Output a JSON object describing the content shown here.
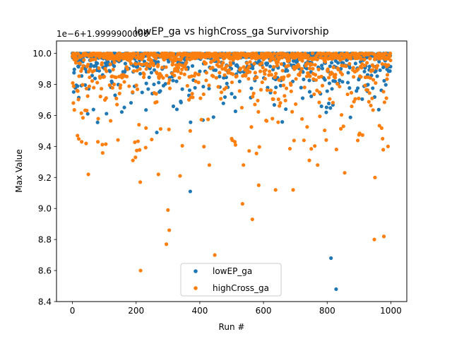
{
  "chart_data": {
    "type": "scatter",
    "title": "lowEP_ga vs highCross_ga Survivorship",
    "xlabel": "Run #",
    "ylabel": "Max Value",
    "offset_text": "1e−6+1.9999900000",
    "xlim": [
      -50,
      1050
    ],
    "ylim": [
      8.4,
      10.08
    ],
    "xticks": [
      0,
      200,
      400,
      600,
      800,
      1000
    ],
    "xtick_labels": [
      "0",
      "200",
      "400",
      "600",
      "800",
      "1000"
    ],
    "yticks": [
      8.4,
      8.6,
      8.8,
      9.0,
      9.2,
      9.4,
      9.6,
      9.8,
      10.0
    ],
    "ytick_labels": [
      "8.4",
      "8.6",
      "8.8",
      "9.0",
      "9.2",
      "9.4",
      "9.6",
      "9.8",
      "10.0"
    ],
    "grid": false,
    "legend_position": "lower-center",
    "n_points_per_series": 1000,
    "series": [
      {
        "name": "lowEP_ga",
        "color": "#1f77b4",
        "notable_points": [
          [
            370,
            9.11
          ],
          [
            812,
            8.68
          ],
          [
            828,
            8.48
          ],
          [
            265,
            9.49
          ],
          [
            123,
            9.82
          ]
        ]
      },
      {
        "name": "highCross_ga",
        "color": "#ff7f0e",
        "notable_points": [
          [
            214,
            8.6
          ],
          [
            295,
            8.77
          ],
          [
            300,
            8.99
          ],
          [
            304,
            8.86
          ],
          [
            447,
            8.7
          ],
          [
            565,
            8.93
          ],
          [
            534,
            9.03
          ],
          [
            270,
            9.22
          ],
          [
            213,
            9.17
          ],
          [
            50,
            9.22
          ],
          [
            198,
            9.33
          ],
          [
            190,
            9.31
          ],
          [
            338,
            9.21
          ],
          [
            430,
            9.28
          ],
          [
            537,
            9.28
          ],
          [
            585,
            9.15
          ],
          [
            638,
            9.12
          ],
          [
            693,
            9.12
          ],
          [
            744,
            9.31
          ],
          [
            770,
            9.28
          ],
          [
            855,
            9.23
          ],
          [
            950,
            9.2
          ],
          [
            948,
            8.8
          ],
          [
            978,
            8.82
          ],
          [
            991,
            9.4
          ],
          [
            16,
            9.47
          ],
          [
            29,
            9.43
          ],
          [
            80,
            9.43
          ],
          [
            500,
            9.45
          ],
          [
            510,
            9.43
          ],
          [
            512,
            9.41
          ],
          [
            140,
            9.67
          ],
          [
            3,
            9.68
          ]
        ]
      }
    ]
  }
}
